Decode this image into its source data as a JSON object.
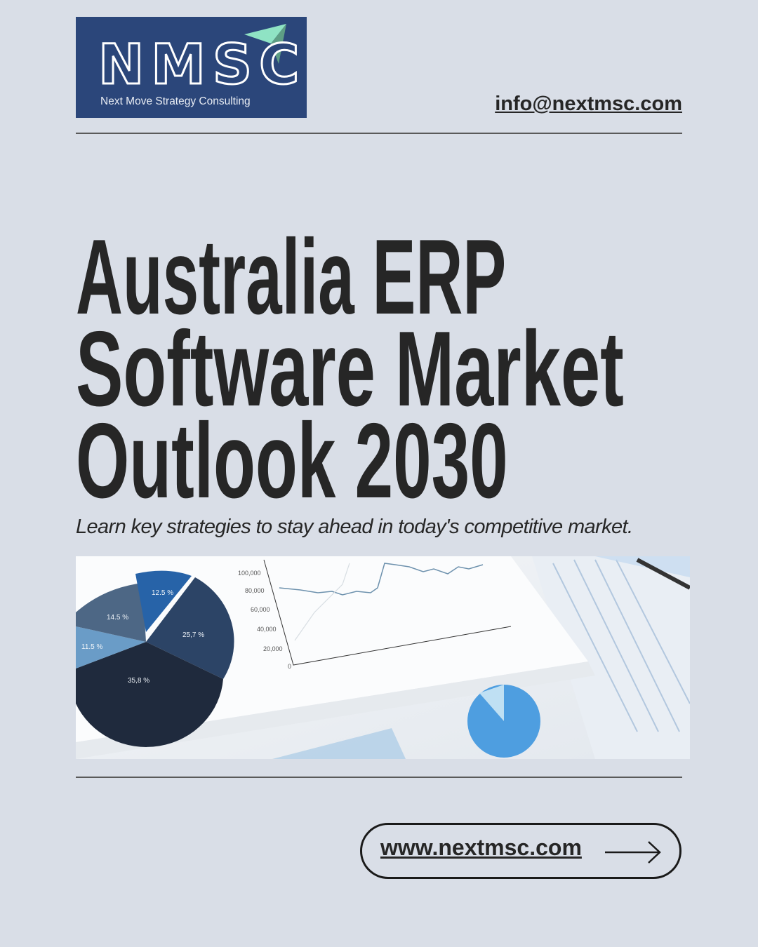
{
  "logo": {
    "mark": "NMSC",
    "tagline": "Next Move Strategy Consulting",
    "bg_color": "#2b467a",
    "arrow_color": "#8fe3c4"
  },
  "header": {
    "email": "info@nextmsc.com"
  },
  "title": {
    "line1": "Australia ERP",
    "line2": "Software Market",
    "line3": "Outlook 2030"
  },
  "subtitle": "Learn key strategies to stay ahead in today's competitive market.",
  "photo": {
    "pie_labels": [
      "12.5 %",
      "25,7 %",
      "35,8 %",
      "11.5 %",
      "14.5 %"
    ],
    "axis_labels": [
      "100,000",
      "80,000",
      "60,000",
      "40,000",
      "20,000",
      "0"
    ]
  },
  "cta": {
    "label": "www.nextmsc.com",
    "icon": "arrow-right-icon"
  }
}
